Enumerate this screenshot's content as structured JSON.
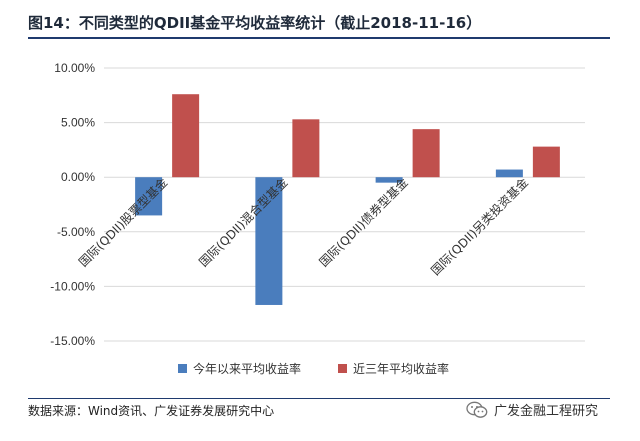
{
  "header": {
    "title": "图14：不同类型的QDII基金平均收益率统计（截止2018-11-16）"
  },
  "footer": {
    "source": "数据来源：Wind资讯、广发证券发展研究中心",
    "watermark": "广发金融工程研究"
  },
  "chart_data": {
    "type": "bar",
    "categories": [
      "国际(QDII)股票型基金",
      "国际(QDII)混合型基金",
      "国际(QDII)债券型基金",
      "国际(QDII)另类投资基金"
    ],
    "series": [
      {
        "name": "今年以来平均收益率",
        "color": "#4a7dbd",
        "values": [
          -3.5,
          -11.7,
          -0.5,
          0.7
        ]
      },
      {
        "name": "近三年平均收益率",
        "color": "#c0504d",
        "values": [
          7.6,
          5.3,
          4.4,
          2.8
        ]
      }
    ],
    "ylim": [
      -15,
      10
    ],
    "yticks": [
      10,
      5,
      0,
      -5,
      -10,
      -15
    ],
    "ytick_labels": [
      "10.00%",
      "5.00%",
      "0.00%",
      "-5.00%",
      "-10.00%",
      "-15.00%"
    ],
    "grid": true,
    "legend": "bottom"
  }
}
